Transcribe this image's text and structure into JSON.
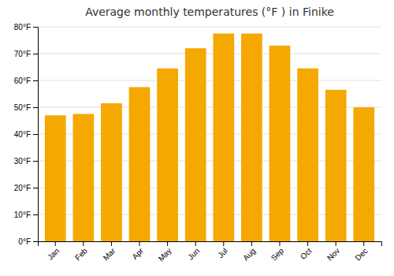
{
  "chart_data": {
    "type": "bar",
    "title": "Average monthly temperatures (°F ) in Finike",
    "categories": [
      "Jan",
      "Feb",
      "Mar",
      "Apr",
      "May",
      "Jun",
      "Jul",
      "Aug",
      "Sep",
      "Oct",
      "Nov",
      "Dec"
    ],
    "values": [
      47,
      47.5,
      51.5,
      57.5,
      64.5,
      72,
      77.5,
      77.5,
      73,
      64.5,
      56.5,
      50
    ],
    "color": "#F5A800",
    "ylim": [
      0,
      80
    ],
    "yticks": [
      {
        "value": 0,
        "label": "0°F"
      },
      {
        "value": 10,
        "label": "10°F"
      },
      {
        "value": 20,
        "label": "20°F"
      },
      {
        "value": 30,
        "label": "30°F"
      },
      {
        "value": 40,
        "label": "40°F"
      },
      {
        "value": 50,
        "label": "50°F"
      },
      {
        "value": 60,
        "label": "60°F"
      },
      {
        "value": 70,
        "label": "70°F"
      },
      {
        "value": 80,
        "label": "80°F"
      }
    ],
    "grid": true
  }
}
